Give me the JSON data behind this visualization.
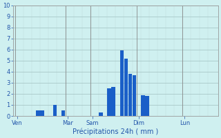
{
  "xlabel": "Précipitations 24h ( mm )",
  "background_color": "#cff0f0",
  "bar_color": "#1a5fc8",
  "grid_color": "#a8c8c8",
  "grid_color_minor": "#c0dada",
  "ylim": [
    0,
    10
  ],
  "yticks": [
    0,
    1,
    2,
    3,
    4,
    5,
    6,
    7,
    8,
    9,
    10
  ],
  "bar_values": [
    0,
    0,
    0,
    0,
    0,
    0.5,
    0.5,
    0,
    0,
    1.0,
    0,
    0.5,
    0,
    0,
    0,
    0,
    0,
    0,
    0,
    0,
    0.3,
    0,
    2.5,
    2.6,
    0,
    5.9,
    5.2,
    3.8,
    3.7,
    0,
    1.9,
    1.8,
    0,
    0,
    0,
    0,
    0,
    0,
    0,
    0,
    0,
    0,
    0,
    0,
    0,
    0,
    0,
    0
  ],
  "day_labels": [
    "Ven",
    "Mar",
    "Sam",
    "Dim",
    "Lun"
  ],
  "day_tick_positions": [
    0,
    12,
    18,
    29,
    40
  ],
  "num_bars": 48,
  "tick_fontsize": 6,
  "label_fontsize": 7,
  "tick_color": "#2255aa",
  "label_color": "#2255aa",
  "spine_color": "#999999",
  "vline_color": "#888888",
  "vline_positions": [
    0,
    12,
    18,
    29,
    40
  ]
}
